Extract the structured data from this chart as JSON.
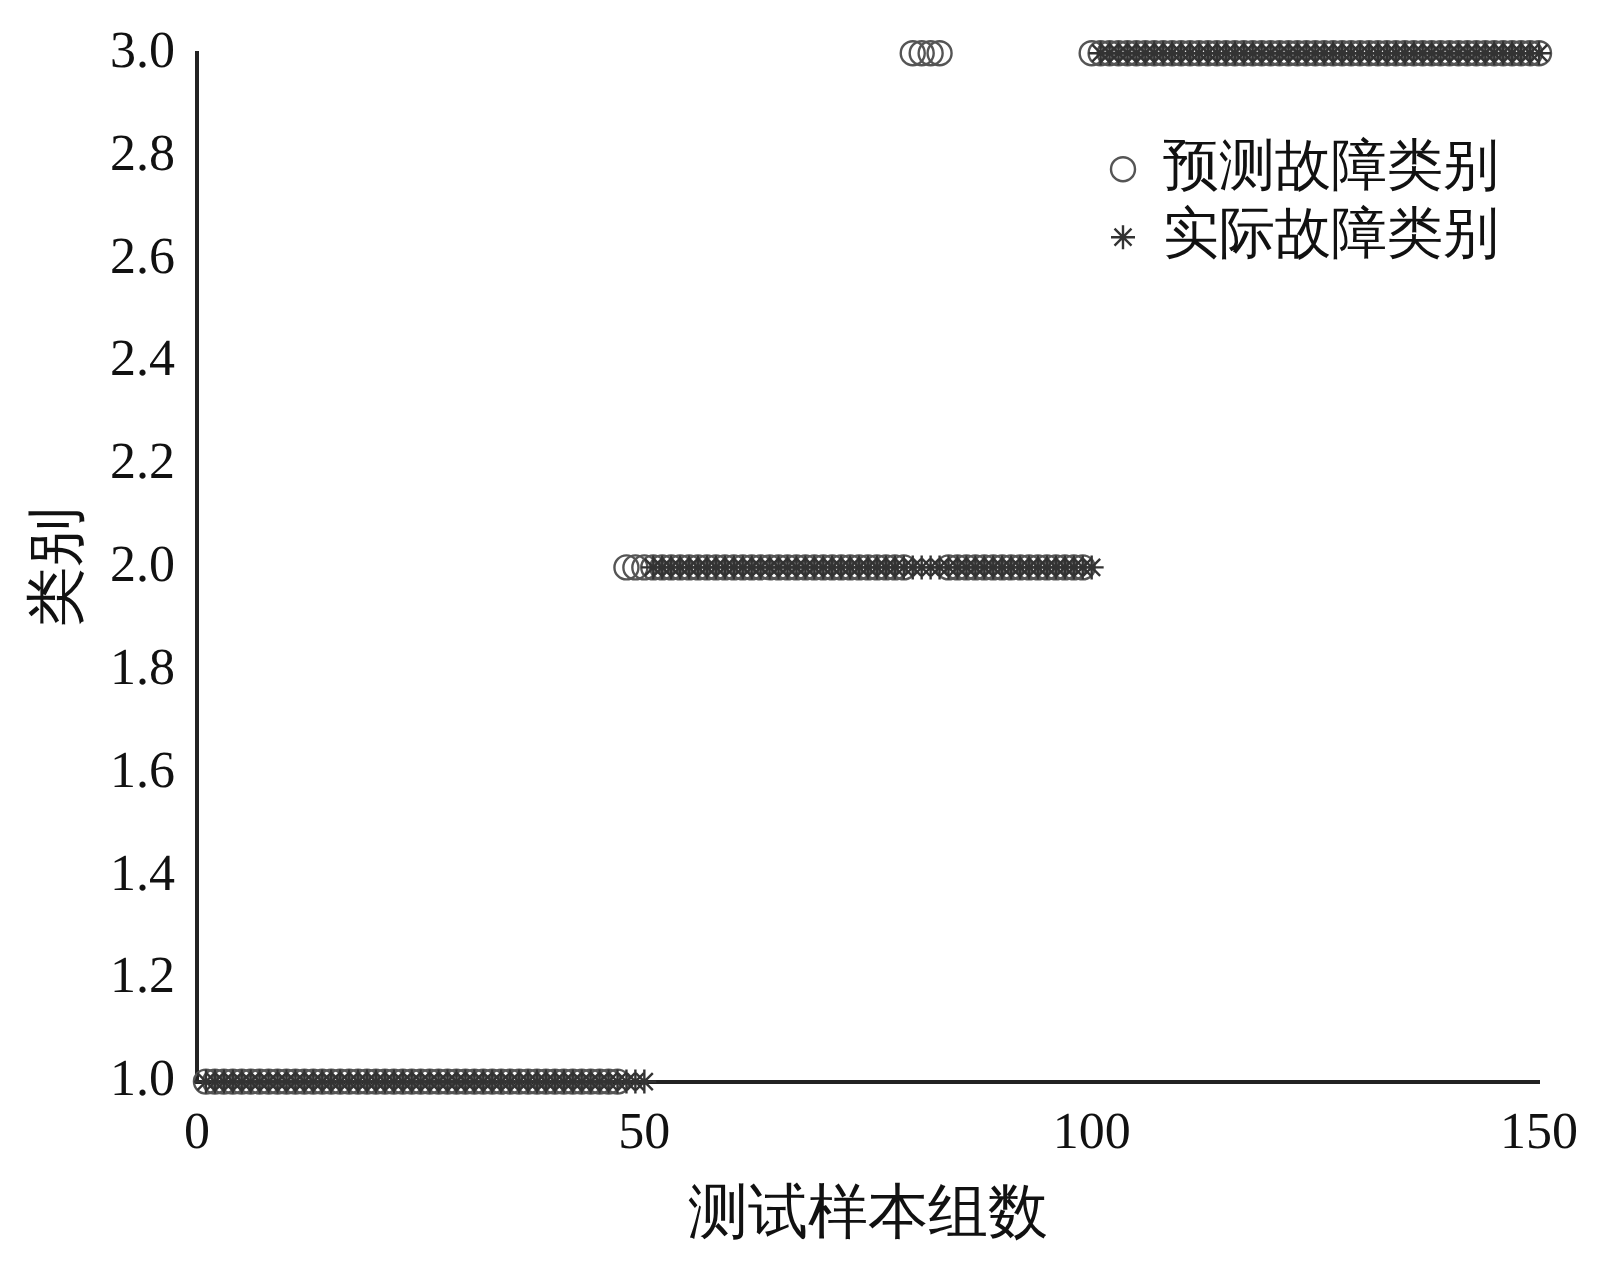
{
  "chart_data": {
    "type": "scatter",
    "xlabel": "测试样本组数",
    "ylabel": "类别",
    "x": [
      1,
      2,
      3,
      4,
      5,
      6,
      7,
      8,
      9,
      10,
      11,
      12,
      13,
      14,
      15,
      16,
      17,
      18,
      19,
      20,
      21,
      22,
      23,
      24,
      25,
      26,
      27,
      28,
      29,
      30,
      31,
      32,
      33,
      34,
      35,
      36,
      37,
      38,
      39,
      40,
      41,
      42,
      43,
      44,
      45,
      46,
      47,
      48,
      49,
      50,
      51,
      52,
      53,
      54,
      55,
      56,
      57,
      58,
      59,
      60,
      61,
      62,
      63,
      64,
      65,
      66,
      67,
      68,
      69,
      70,
      71,
      72,
      73,
      74,
      75,
      76,
      77,
      78,
      79,
      80,
      81,
      82,
      83,
      84,
      85,
      86,
      87,
      88,
      89,
      90,
      91,
      92,
      93,
      94,
      95,
      96,
      97,
      98,
      99,
      100,
      101,
      102,
      103,
      104,
      105,
      106,
      107,
      108,
      109,
      110,
      111,
      112,
      113,
      114,
      115,
      116,
      117,
      118,
      119,
      120,
      121,
      122,
      123,
      124,
      125,
      126,
      127,
      128,
      129,
      130,
      131,
      132,
      133,
      134,
      135,
      136,
      137,
      138,
      139,
      140,
      141,
      142,
      143,
      144,
      145,
      146,
      147,
      148,
      149,
      150
    ],
    "series": [
      {
        "name": "预测故障类别",
        "color": "#555555",
        "marker": "circle",
        "values": [
          1,
          1,
          1,
          1,
          1,
          1,
          1,
          1,
          1,
          1,
          1,
          1,
          1,
          1,
          1,
          1,
          1,
          1,
          1,
          1,
          1,
          1,
          1,
          1,
          1,
          1,
          1,
          1,
          1,
          1,
          1,
          1,
          1,
          1,
          1,
          1,
          1,
          1,
          1,
          1,
          1,
          1,
          1,
          1,
          1,
          1,
          1,
          2,
          2,
          2,
          2,
          2,
          2,
          2,
          2,
          2,
          2,
          2,
          2,
          2,
          2,
          2,
          2,
          2,
          2,
          2,
          2,
          2,
          2,
          2,
          2,
          2,
          2,
          2,
          2,
          2,
          2,
          2,
          2,
          3,
          3,
          3,
          3,
          2,
          2,
          2,
          2,
          2,
          2,
          2,
          2,
          2,
          2,
          2,
          2,
          2,
          2,
          2,
          2,
          3,
          3,
          3,
          3,
          3,
          3,
          3,
          3,
          3,
          3,
          3,
          3,
          3,
          3,
          3,
          3,
          3,
          3,
          3,
          3,
          3,
          3,
          3,
          3,
          3,
          3,
          3,
          3,
          3,
          3,
          3,
          3,
          3,
          3,
          3,
          3,
          3,
          3,
          3,
          3,
          3,
          3,
          3,
          3,
          3,
          3,
          3,
          3,
          3,
          3,
          3
        ]
      },
      {
        "name": "实际故障类别",
        "color": "#333333",
        "marker": "cross",
        "values": [
          1,
          1,
          1,
          1,
          1,
          1,
          1,
          1,
          1,
          1,
          1,
          1,
          1,
          1,
          1,
          1,
          1,
          1,
          1,
          1,
          1,
          1,
          1,
          1,
          1,
          1,
          1,
          1,
          1,
          1,
          1,
          1,
          1,
          1,
          1,
          1,
          1,
          1,
          1,
          1,
          1,
          1,
          1,
          1,
          1,
          1,
          1,
          1,
          1,
          1,
          2,
          2,
          2,
          2,
          2,
          2,
          2,
          2,
          2,
          2,
          2,
          2,
          2,
          2,
          2,
          2,
          2,
          2,
          2,
          2,
          2,
          2,
          2,
          2,
          2,
          2,
          2,
          2,
          2,
          2,
          2,
          2,
          2,
          2,
          2,
          2,
          2,
          2,
          2,
          2,
          2,
          2,
          2,
          2,
          2,
          2,
          2,
          2,
          2,
          2,
          3,
          3,
          3,
          3,
          3,
          3,
          3,
          3,
          3,
          3,
          3,
          3,
          3,
          3,
          3,
          3,
          3,
          3,
          3,
          3,
          3,
          3,
          3,
          3,
          3,
          3,
          3,
          3,
          3,
          3,
          3,
          3,
          3,
          3,
          3,
          3,
          3,
          3,
          3,
          3,
          3,
          3,
          3,
          3,
          3,
          3,
          3,
          3,
          3,
          3
        ]
      }
    ],
    "xlim": [
      0,
      150
    ],
    "xticks": [
      0,
      50,
      100,
      150
    ],
    "ylim": [
      1,
      3
    ],
    "yticks": [
      {
        "value": 1,
        "label": "1.0"
      },
      {
        "value": 1.2,
        "label": "1.2"
      },
      {
        "value": 1.4,
        "label": "1.4"
      },
      {
        "value": 1.6,
        "label": "1.6"
      },
      {
        "value": 1.8,
        "label": "1.8"
      },
      {
        "value": 2,
        "label": "2.0"
      },
      {
        "value": 2.2,
        "label": "2.2"
      },
      {
        "value": 2.4,
        "label": "2.4"
      },
      {
        "value": 2.6,
        "label": "2.6"
      },
      {
        "value": 2.8,
        "label": "2.8"
      },
      {
        "value": 3,
        "label": "3.0"
      }
    ],
    "legend": "top right"
  }
}
